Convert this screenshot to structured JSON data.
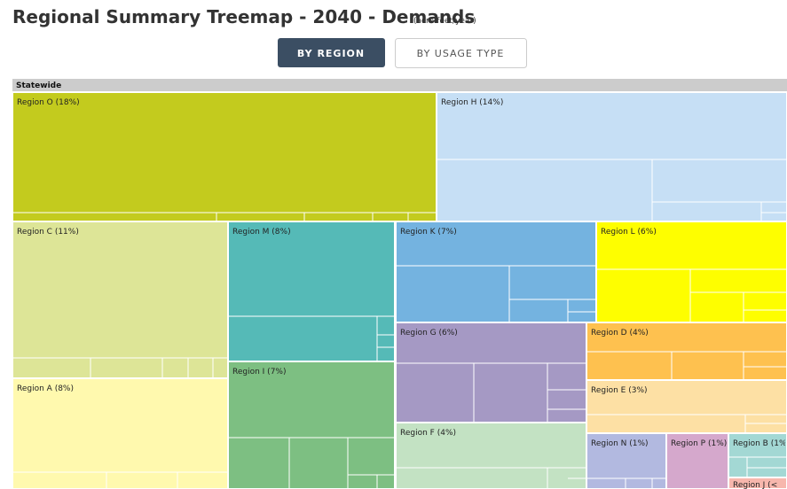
{
  "header": {
    "title": "Regional Summary Treemap - 2040 - Demands",
    "unit": "(acre-feet/year)"
  },
  "buttons": [
    "BY REGION",
    "BY USAGE TYPE"
  ],
  "treemap": {
    "root": "Statewide",
    "regions": [
      "Region O (18%)",
      "Region H (14%)",
      "Region C (11%)",
      "Region A (8%)",
      "Region M (8%)",
      "Region I (7%)",
      "Region K (7%)",
      "Region L (6%)",
      "Region G (6%)",
      "Region D (4%)",
      "Region E (3%)",
      "Region F (4%)",
      "Region N (1%)",
      "Region P (1%)",
      "Region B (1%",
      "Region J (<"
    ]
  }
}
